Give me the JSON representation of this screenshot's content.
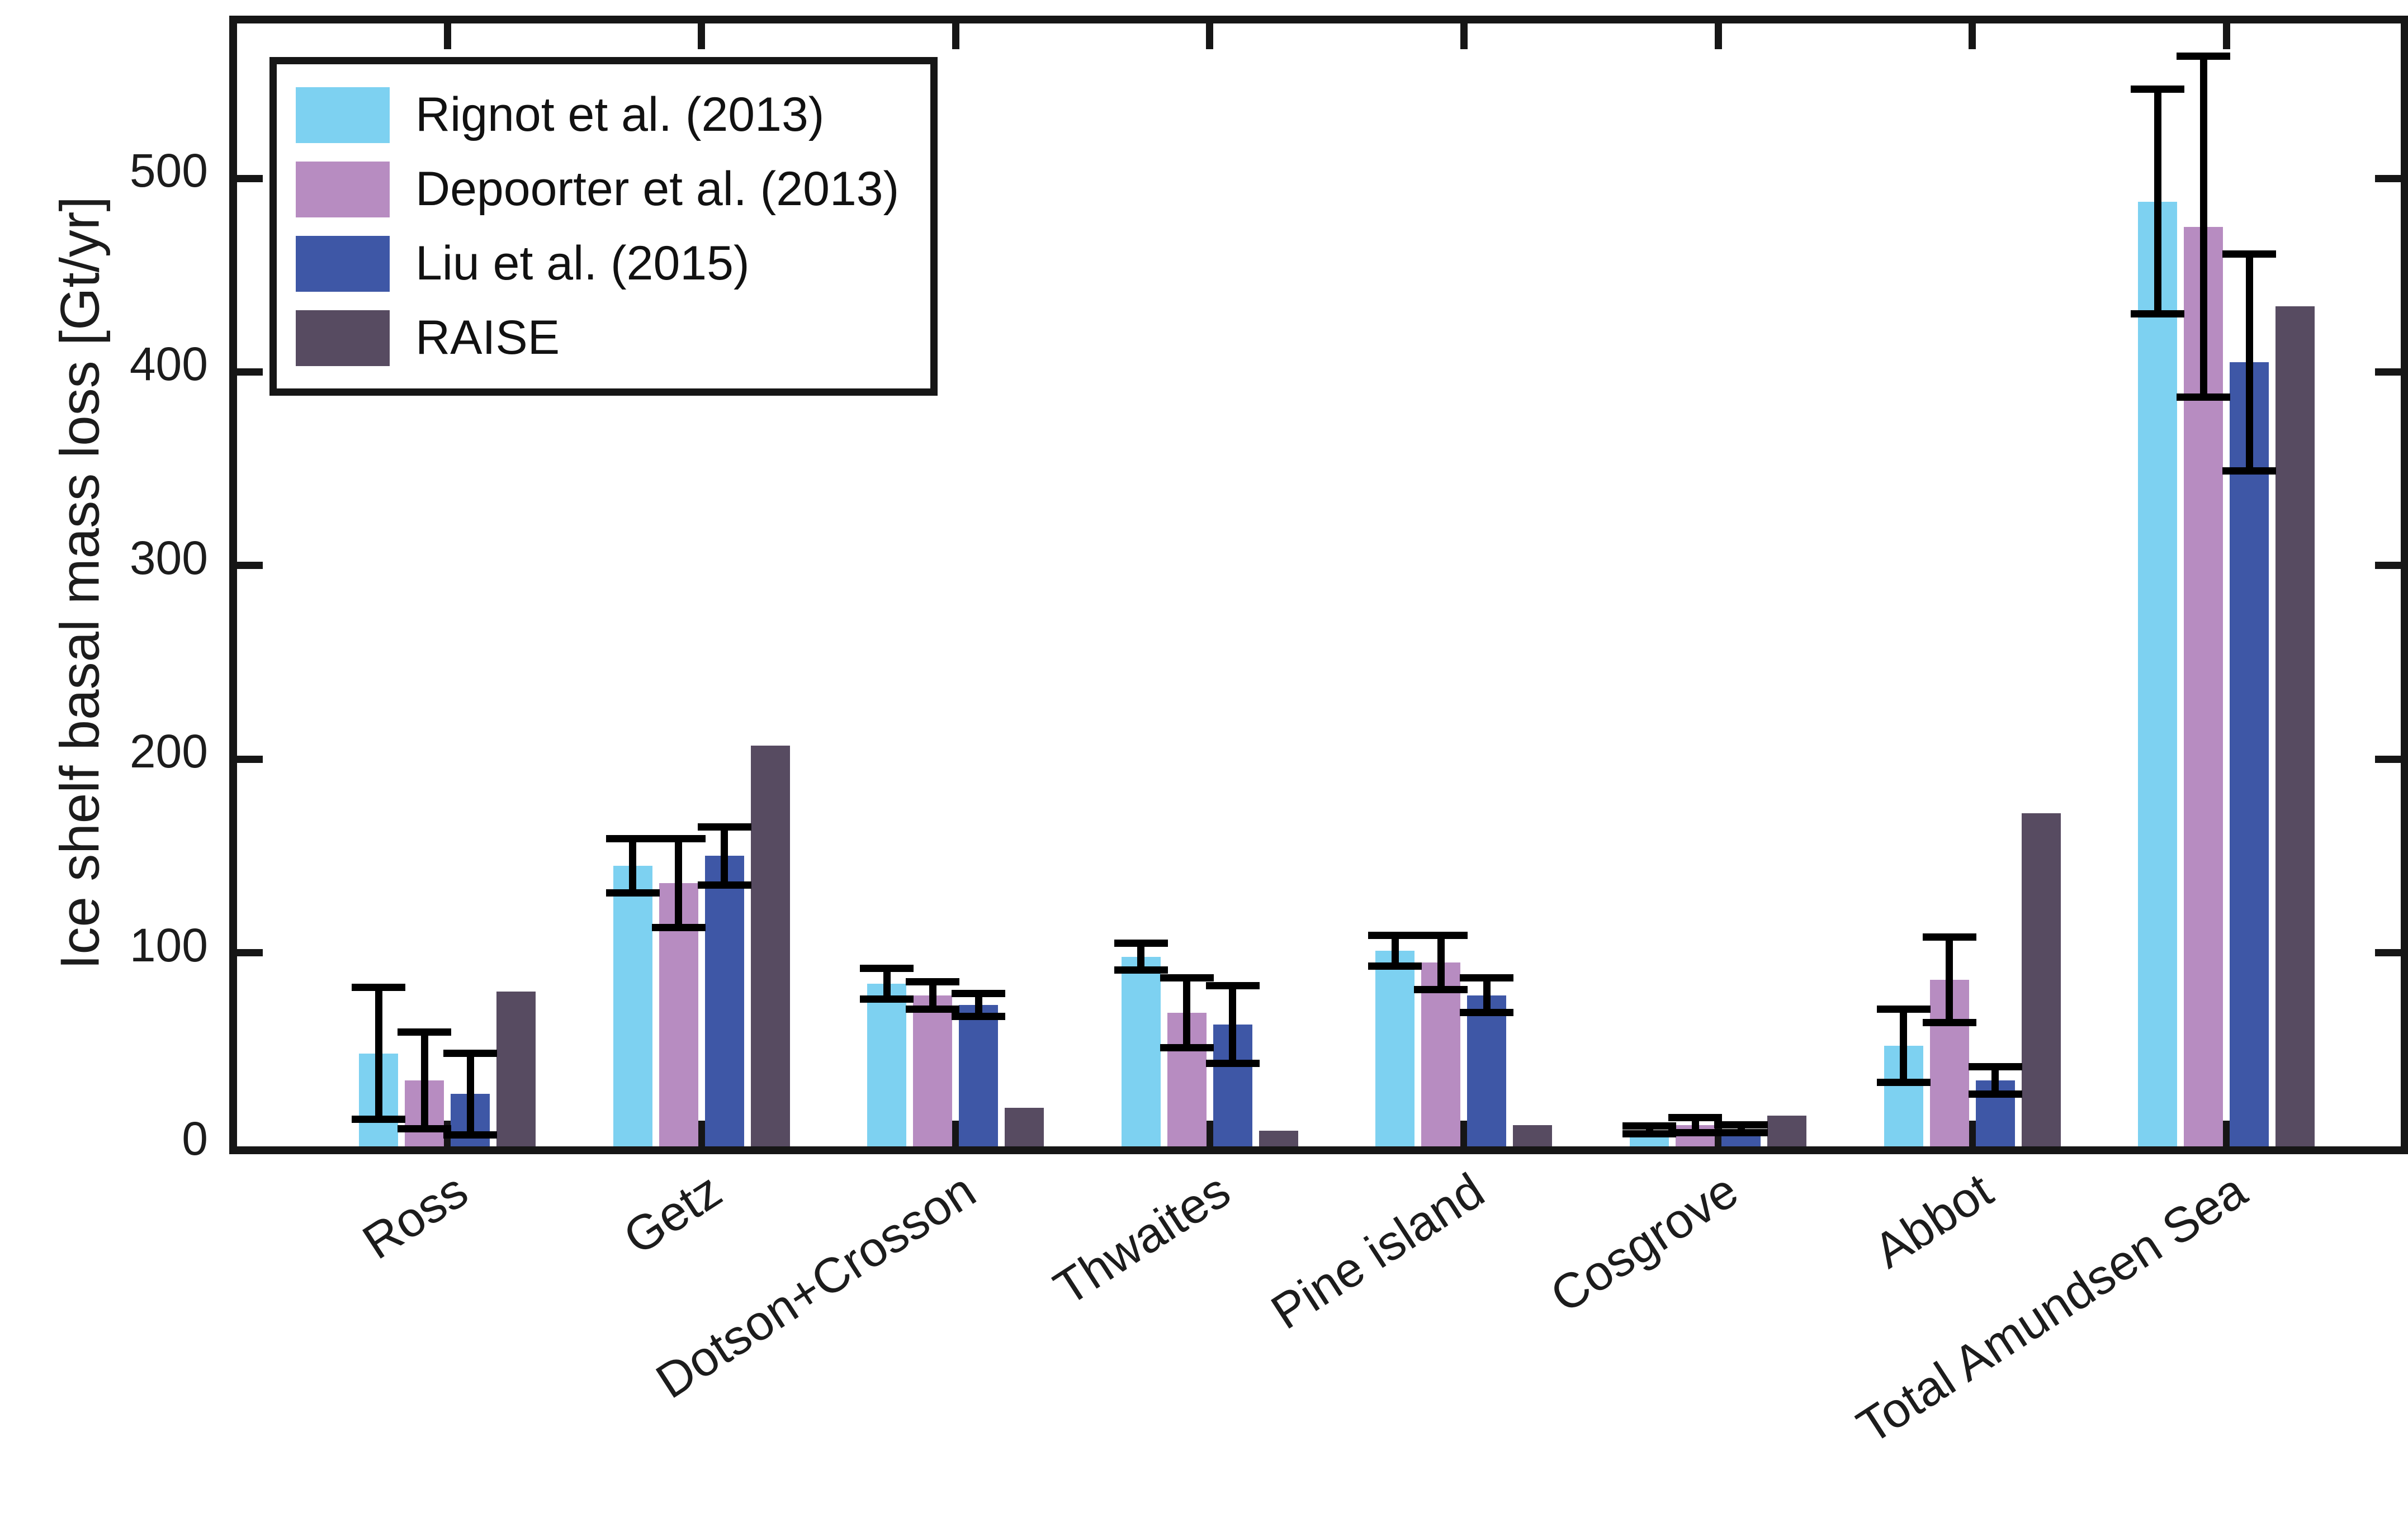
{
  "figure": {
    "background": "#ffffff",
    "axis_color": "#161616",
    "text_color": "#1c1c1c",
    "error_bar_color": "#000000"
  },
  "chart_data": {
    "type": "bar",
    "title": "",
    "xlabel": "",
    "ylabel": "Ice shelf basal mass loss [Gt/yr]",
    "ylim": [
      0,
      580
    ],
    "yticks": [
      0,
      100,
      200,
      300,
      400,
      500
    ],
    "grid": false,
    "legend_position": "top-left",
    "box": true,
    "tick_direction": "in",
    "categories": [
      "Ross",
      "Getz",
      "Dotson+Crosson",
      "Thwaites",
      "Pine island",
      "Cosgrove",
      "Abbot",
      "Total Amundsen Sea"
    ],
    "series": [
      {
        "name": "Rignot et al. (2013)",
        "color": "#7DD1F1",
        "values": [
          48,
          145,
          84,
          98,
          101,
          8.5,
          52,
          488
        ],
        "errors": [
          34,
          14,
          8,
          7,
          8,
          2,
          19,
          58
        ]
      },
      {
        "name": "Depoorter et al. (2013)",
        "color": "#B78CC1",
        "values": [
          34,
          136,
          78,
          69,
          95,
          11,
          86,
          475
        ],
        "errors": [
          25,
          23,
          7,
          18,
          14,
          4,
          22,
          88
        ]
      },
      {
        "name": "Liu et al. (2015)",
        "color": "#3E57A6",
        "values": [
          27,
          150,
          73,
          63,
          78,
          9,
          34,
          405
        ],
        "errors": [
          21,
          15,
          6,
          20,
          9,
          2,
          7,
          56
        ]
      },
      {
        "name": "RAISE",
        "color": "#574B61",
        "values": [
          80,
          207,
          20,
          8,
          11,
          16,
          172,
          434
        ],
        "errors": null
      }
    ]
  }
}
